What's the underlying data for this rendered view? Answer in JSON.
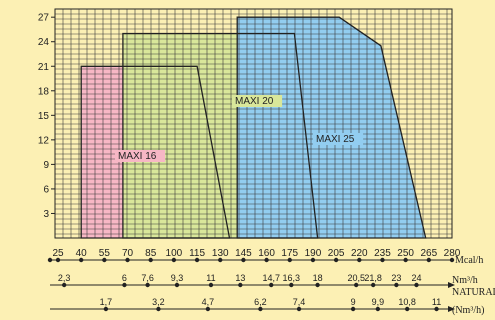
{
  "chart_data": {
    "type": "area",
    "x_axis": {
      "label": "Mcal/h",
      "min": 25,
      "max": 280,
      "ticks": [
        25,
        40,
        55,
        70,
        85,
        100,
        115,
        130,
        145,
        160,
        175,
        190,
        205,
        220,
        235,
        250,
        265,
        280
      ]
    },
    "y_axis": {
      "min": 0,
      "max": 28,
      "ticks": [
        3,
        6,
        9,
        12,
        15,
        18,
        21,
        24,
        27
      ]
    },
    "grid": true,
    "series": [
      {
        "name": "MAXI 16",
        "color": "#F7B7C5",
        "points": [
          [
            40,
            0
          ],
          [
            40,
            21
          ],
          [
            115,
            21
          ],
          [
            136,
            0
          ]
        ]
      },
      {
        "name": "MAXI 20",
        "color": "#D9E79A",
        "points": [
          [
            67,
            0
          ],
          [
            67,
            25
          ],
          [
            178,
            25
          ],
          [
            193,
            0
          ]
        ]
      },
      {
        "name": "MAXI 25",
        "color": "#92CDF0",
        "points": [
          [
            141,
            0
          ],
          [
            141,
            27
          ],
          [
            207,
            27
          ],
          [
            234,
            23.5
          ],
          [
            263,
            0
          ]
        ]
      }
    ],
    "extra_scales": [
      {
        "label": "Nm³/h",
        "sublabel": "NATURAL",
        "ticks": [
          {
            "text": "2,3",
            "x": 29
          },
          {
            "text": "6",
            "x": 68
          },
          {
            "text": "7,6",
            "x": 83
          },
          {
            "text": "9,3",
            "x": 102
          },
          {
            "text": "11",
            "x": 124
          },
          {
            "text": "13",
            "x": 143
          },
          {
            "text": "14,7",
            "x": 163
          },
          {
            "text": "16,3",
            "x": 176
          },
          {
            "text": "18",
            "x": 193
          },
          {
            "text": "20,5",
            "x": 218
          },
          {
            "text": "21,8",
            "x": 229
          },
          {
            "text": "23",
            "x": 244
          },
          {
            "text": "24",
            "x": 257
          }
        ]
      },
      {
        "label": "(Nm³/h)",
        "sublabel": "",
        "ticks": [
          {
            "text": "1,7",
            "x": 56
          },
          {
            "text": "3,2",
            "x": 90
          },
          {
            "text": "4,7",
            "x": 122
          },
          {
            "text": "6,2",
            "x": 156
          },
          {
            "text": "7,4",
            "x": 181
          },
          {
            "text": "9",
            "x": 216
          },
          {
            "text": "9,9",
            "x": 232
          },
          {
            "text": "10,8",
            "x": 251
          },
          {
            "text": "11",
            "x": 270
          }
        ]
      }
    ]
  }
}
